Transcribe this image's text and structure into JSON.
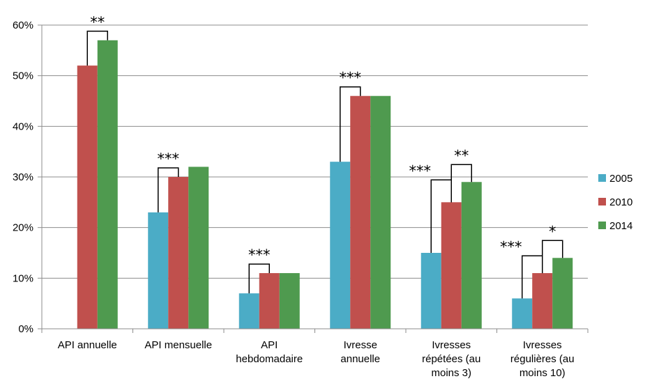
{
  "chart_data": {
    "type": "bar",
    "title": "",
    "xlabel": "",
    "ylabel": "",
    "ylim": [
      0,
      60
    ],
    "y_ticks": [
      "0%",
      "10%",
      "20%",
      "30%",
      "40%",
      "50%",
      "60%"
    ],
    "grid": true,
    "legend_position": "right",
    "categories": [
      [
        "API annuelle"
      ],
      [
        "API mensuelle"
      ],
      [
        "API",
        "hebdomadaire"
      ],
      [
        "Ivresse",
        "annuelle"
      ],
      [
        "Ivresses",
        "répétées (au",
        "moins 3)"
      ],
      [
        "Ivresses",
        "régulières (au",
        "moins 10)"
      ]
    ],
    "series": [
      {
        "name": "2005",
        "color": "#4BACC6",
        "values": [
          null,
          23,
          7,
          33,
          15,
          6
        ]
      },
      {
        "name": "2010",
        "color": "#C0504D",
        "values": [
          52,
          30,
          11,
          46,
          25,
          11
        ]
      },
      {
        "name": "2014",
        "color": "#4F9A4F",
        "values": [
          57,
          32,
          11,
          46,
          29,
          14
        ]
      }
    ],
    "significance": [
      {
        "category": 0,
        "from": "2010",
        "to": "2014",
        "label": "**"
      },
      {
        "category": 1,
        "from": "2005",
        "to": "2010",
        "label": "***"
      },
      {
        "category": 2,
        "from": "2005",
        "to": "2010",
        "label": "***"
      },
      {
        "category": 3,
        "from": "2005",
        "to": "2010",
        "label": "***"
      },
      {
        "category": 4,
        "from": "2005",
        "to": "2010",
        "label": "***"
      },
      {
        "category": 4,
        "from": "2010",
        "to": "2014",
        "label": "**"
      },
      {
        "category": 5,
        "from": "2005",
        "to": "2010",
        "label": "***"
      },
      {
        "category": 5,
        "from": "2010",
        "to": "2014",
        "label": "*"
      }
    ]
  }
}
